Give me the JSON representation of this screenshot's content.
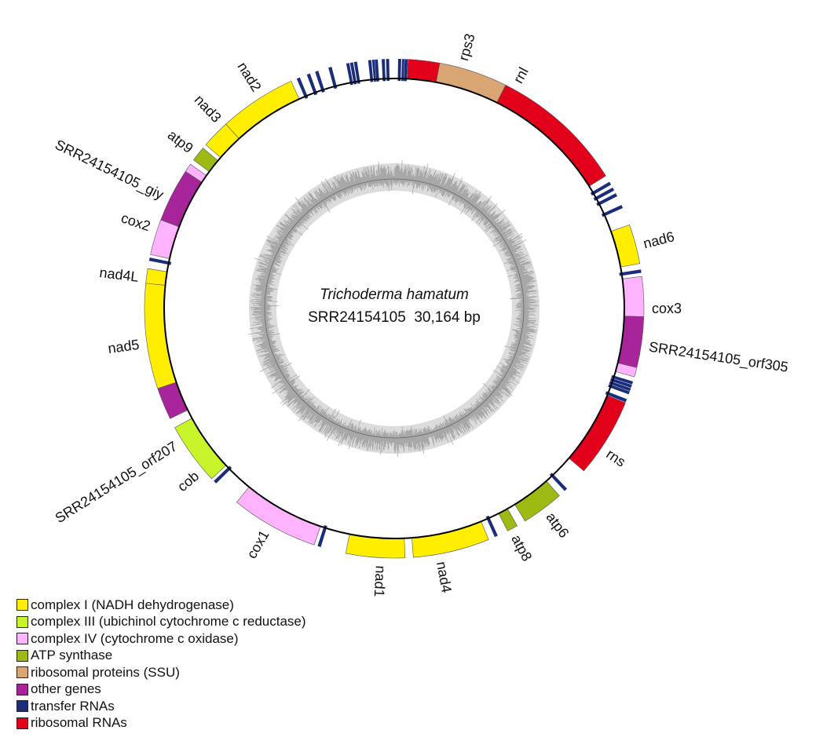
{
  "title": {
    "organism": "Trichoderma hamatum",
    "subtitle": "SRR24154105  30,164 bp"
  },
  "genome_length_bp": 30164,
  "categories": {
    "complex1": {
      "label": "complex I (NADH dehydrogenase)",
      "color": "#FFEE00"
    },
    "complex3": {
      "label": "complex III (ubichinol cytochrome c reductase)",
      "color": "#C8F52A"
    },
    "complex4": {
      "label": "complex IV (cytochrome c oxidase)",
      "color": "#FFB3FF"
    },
    "atp": {
      "label": "ATP synthase",
      "color": "#9BBB12"
    },
    "ribprot": {
      "label": "ribosomal proteins (SSU)",
      "color": "#D9A673"
    },
    "other": {
      "label": "other genes",
      "color": "#A8249B"
    },
    "trna": {
      "label": "transfer RNAs",
      "color": "#1B2D7A"
    },
    "rrna": {
      "label": "ribosomal RNAs",
      "color": "#E2001A"
    }
  },
  "legend_order": [
    "complex1",
    "complex3",
    "complex4",
    "atp",
    "ribprot",
    "other",
    "trna",
    "rrna"
  ],
  "features": [
    {
      "label": "",
      "cat": "rrna",
      "start": 268,
      "end": 880
    },
    {
      "label": "rps3",
      "cat": "ribprot",
      "start": 880,
      "end": 2220
    },
    {
      "label": "rnl",
      "cat": "rrna",
      "start": 2220,
      "end": 4851
    },
    {
      "label": "",
      "cat": "trna",
      "start": 4985,
      "end": 5050
    },
    {
      "label": "",
      "cat": "trna",
      "start": 5111,
      "end": 5176
    },
    {
      "label": "",
      "cat": "trna",
      "start": 5237,
      "end": 5302
    },
    {
      "label": "",
      "cat": "trna",
      "start": 5488,
      "end": 5553
    },
    {
      "label": "nad6",
      "cat": "complex1",
      "start": 5899,
      "end": 6670
    },
    {
      "label": "",
      "cat": "trna",
      "start": 6787,
      "end": 6852
    },
    {
      "label": "cox3",
      "cat": "complex4",
      "start": 6921,
      "end": 7700
    },
    {
      "label": "SRR24154105_orf305",
      "cat": "other",
      "start": 7700,
      "end": 8689
    },
    {
      "label": "",
      "cat": "complex4",
      "start": 8689,
      "end": 8873
    },
    {
      "label": "",
      "cat": "trna",
      "start": 8966,
      "end": 9026
    },
    {
      "label": "",
      "cat": "trna",
      "start": 9033,
      "end": 9093
    },
    {
      "label": "",
      "cat": "trna",
      "start": 9100,
      "end": 9160
    },
    {
      "label": "",
      "cat": "trna",
      "start": 9167,
      "end": 9227
    },
    {
      "label": "",
      "cat": "trna",
      "start": 9326,
      "end": 9391
    },
    {
      "label": "rns",
      "cat": "rrna",
      "start": 9401,
      "end": 10943
    },
    {
      "label": "",
      "cat": "trna",
      "start": 11412,
      "end": 11477
    },
    {
      "label": "atp6",
      "cat": "atp",
      "start": 11613,
      "end": 12435
    },
    {
      "label": "atp8",
      "cat": "atp",
      "start": 12611,
      "end": 12820
    },
    {
      "label": "",
      "cat": "trna",
      "start": 13029,
      "end": 13094
    },
    {
      "label": "nad4",
      "cat": "complex1",
      "start": 13222,
      "end": 14714
    },
    {
      "label": "nad1",
      "cat": "complex1",
      "start": 14873,
      "end": 16021
    },
    {
      "label": "",
      "cat": "trna",
      "start": 16515,
      "end": 16580
    },
    {
      "label": "cox1",
      "cat": "complex4",
      "start": 16649,
      "end": 18359
    },
    {
      "label": "",
      "cat": "trna",
      "start": 18895,
      "end": 18960
    },
    {
      "label": "cob",
      "cat": "complex3",
      "start": 19020,
      "end": 20235
    },
    {
      "label": "SRR24154105_orf207",
      "cat": "other",
      "start": 20428,
      "end": 21056
    },
    {
      "label": "nad5",
      "cat": "complex1",
      "start": 21056,
      "end": 23109
    },
    {
      "label": "nad4L",
      "cat": "complex1",
      "start": 23109,
      "end": 23394
    },
    {
      "label": "",
      "cat": "trna",
      "start": 23545,
      "end": 23610
    },
    {
      "label": "cox2",
      "cat": "complex4",
      "start": 23670,
      "end": 24366
    },
    {
      "label": "SRR24154105_giy",
      "cat": "other",
      "start": 24366,
      "end": 25413
    },
    {
      "label": "",
      "cat": "complex4",
      "start": 25413,
      "end": 25581
    },
    {
      "label": "atp9",
      "cat": "atp",
      "start": 25682,
      "end": 25975
    },
    {
      "label": "nad3",
      "cat": "complex1",
      "start": 26059,
      "end": 26612
    },
    {
      "label": "nad2",
      "cat": "complex1",
      "start": 26612,
      "end": 28120
    },
    {
      "label": "",
      "cat": "trna",
      "start": 28238,
      "end": 28303
    },
    {
      "label": "",
      "cat": "trna",
      "start": 28447,
      "end": 28512
    },
    {
      "label": "",
      "cat": "trna",
      "start": 28615,
      "end": 28680
    },
    {
      "label": "",
      "cat": "trna",
      "start": 28883,
      "end": 28948
    },
    {
      "label": "",
      "cat": "trna",
      "start": 29235,
      "end": 29295
    },
    {
      "label": "",
      "cat": "trna",
      "start": 29310,
      "end": 29370
    },
    {
      "label": "",
      "cat": "trna",
      "start": 29386,
      "end": 29446
    },
    {
      "label": "",
      "cat": "trna",
      "start": 29662,
      "end": 29722
    },
    {
      "label": "",
      "cat": "trna",
      "start": 29737,
      "end": 29782
    },
    {
      "label": "",
      "cat": "trna",
      "start": 29787,
      "end": 29847
    },
    {
      "label": "",
      "cat": "trna",
      "start": 29922,
      "end": 29982
    },
    {
      "label": "",
      "cat": "trna",
      "start": 30006,
      "end": 30066
    },
    {
      "label": "",
      "cat": "trna",
      "start": 75,
      "end": 135
    },
    {
      "label": "",
      "cat": "trna",
      "start": 151,
      "end": 196
    },
    {
      "label": "",
      "cat": "trna",
      "start": 201,
      "end": 261
    }
  ]
}
